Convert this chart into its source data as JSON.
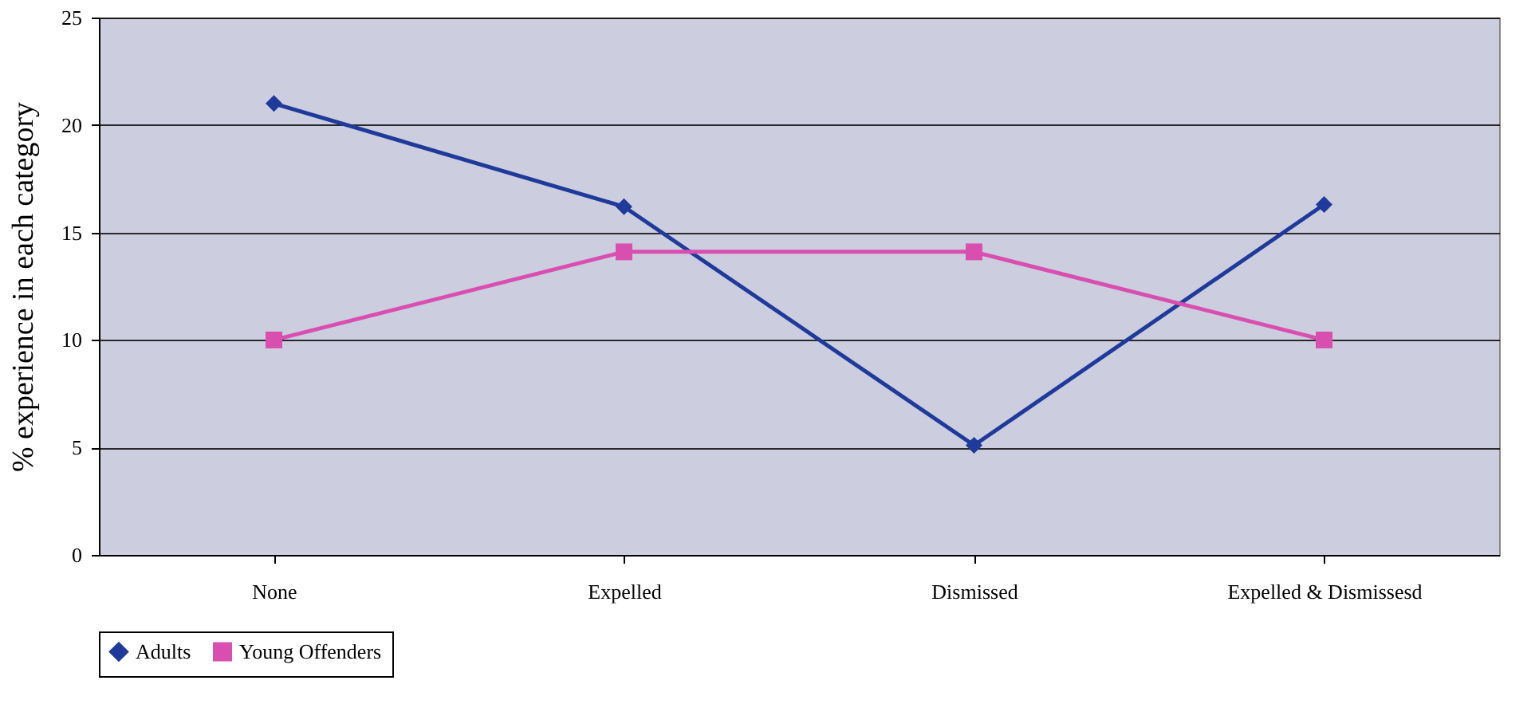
{
  "chart_data": {
    "type": "line",
    "ylabel": "% experience in each category",
    "categories": [
      "None",
      "Expelled",
      "Dismissed",
      "Expelled & Dismissesd"
    ],
    "series": [
      {
        "name": "Adults",
        "color": "#1f3a9a",
        "marker": "diamond",
        "values": [
          21,
          16.2,
          5.1,
          16.3
        ]
      },
      {
        "name": "Young Offenders",
        "color": "#d94fb0",
        "marker": "square",
        "values": [
          10,
          14.1,
          14.1,
          10
        ]
      }
    ],
    "ylim": [
      0,
      25
    ],
    "yticks": [
      0,
      5,
      10,
      15,
      20,
      25
    ],
    "grid": "y",
    "legend": "bottom"
  }
}
